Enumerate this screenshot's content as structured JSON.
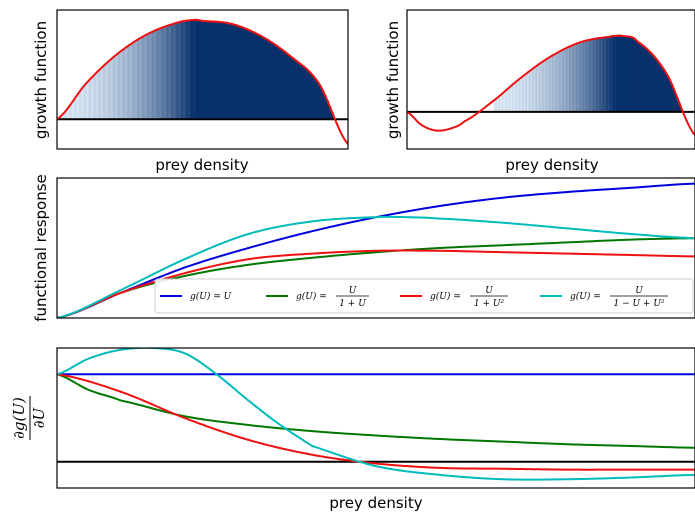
{
  "chart_data": [
    {
      "type": "area",
      "panel": "top-left",
      "xlabel": "prey density",
      "ylabel": "growth function",
      "xlim": [
        0,
        1
      ],
      "ylim": [
        -0.3,
        1.1
      ],
      "grid": false,
      "zero_line": true,
      "gradient_fill": {
        "colormap": "Blues",
        "from": 0.0,
        "to": 0.48,
        "then_solid": true
      },
      "series": [
        {
          "name": "",
          "color": "#ee1111",
          "x": [
            0,
            0.1,
            0.2,
            0.3,
            0.4,
            0.47,
            0.5,
            0.6,
            0.7,
            0.8,
            0.9,
            1.0
          ],
          "y": [
            0,
            0.36,
            0.64,
            0.84,
            0.96,
            1.0,
            0.99,
            0.96,
            0.84,
            0.64,
            0.36,
            -0.25
          ]
        }
      ]
    },
    {
      "type": "area",
      "panel": "top-right",
      "xlabel": "prey density",
      "ylabel": "growth function",
      "xlim": [
        0,
        1
      ],
      "ylim": [
        -0.4,
        1.1
      ],
      "grid": false,
      "zero_line": true,
      "gradient_fill": {
        "colormap": "Blues",
        "from": 0.3,
        "to": 0.73,
        "then_solid": true
      },
      "series": [
        {
          "name": "",
          "color": "#ee1111",
          "x": [
            0,
            0.05,
            0.1,
            0.15,
            0.2,
            0.3,
            0.4,
            0.5,
            0.6,
            0.7,
            0.75,
            0.8,
            0.9,
            1.0
          ],
          "y": [
            0,
            -0.14,
            -0.2,
            -0.18,
            -0.1,
            0.12,
            0.38,
            0.6,
            0.75,
            0.81,
            0.82,
            0.76,
            0.42,
            -0.25
          ]
        }
      ]
    },
    {
      "type": "line",
      "panel": "middle",
      "xlabel": "",
      "ylabel": "functional response",
      "xlim": [
        0,
        1
      ],
      "ylim": [
        0,
        1
      ],
      "grid": false,
      "legend_position": "lower-right",
      "series": [
        {
          "name": "g(U) = U",
          "color": "#0000dd",
          "x": [
            0,
            0.1,
            0.2,
            0.3,
            0.4,
            0.5,
            0.6,
            0.7,
            0.8,
            0.9,
            1.0
          ],
          "y": [
            0,
            0.18,
            0.36,
            0.5,
            0.62,
            0.72,
            0.8,
            0.86,
            0.9,
            0.93,
            0.96
          ]
        },
        {
          "name": "g(U) = U/(1+U)",
          "color": "#007700",
          "x": [
            0,
            0.1,
            0.2,
            0.3,
            0.4,
            0.5,
            0.6,
            0.7,
            0.8,
            0.9,
            1.0
          ],
          "y": [
            0,
            0.18,
            0.3,
            0.38,
            0.43,
            0.47,
            0.5,
            0.52,
            0.54,
            0.56,
            0.57
          ]
        },
        {
          "name": "g(U) = U/(1+U^2)",
          "color": "#ee1111",
          "x": [
            0,
            0.1,
            0.2,
            0.3,
            0.4,
            0.5,
            0.6,
            0.7,
            0.8,
            0.9,
            1.0
          ],
          "y": [
            0,
            0.18,
            0.32,
            0.42,
            0.46,
            0.48,
            0.48,
            0.47,
            0.46,
            0.45,
            0.44
          ]
        },
        {
          "name": "g(U) = U/(1-U+U^2)",
          "color": "#00bbbb",
          "x": [
            0,
            0.1,
            0.2,
            0.3,
            0.4,
            0.5,
            0.55,
            0.6,
            0.7,
            0.8,
            0.9,
            1.0
          ],
          "y": [
            0,
            0.2,
            0.42,
            0.6,
            0.69,
            0.72,
            0.72,
            0.71,
            0.68,
            0.64,
            0.6,
            0.57
          ]
        }
      ]
    },
    {
      "type": "line",
      "panel": "bottom",
      "xlabel": "prey density",
      "ylabel": "∂g(U)/∂U",
      "xlim": [
        0,
        1
      ],
      "ylim": [
        -0.3,
        1.3
      ],
      "grid": false,
      "zero_line": true,
      "series": [
        {
          "name": "g(U) = U",
          "color": "#0000dd",
          "x": [
            0,
            1.0
          ],
          "y": [
            1.0,
            1.0
          ]
        },
        {
          "name": "g(U) = U/(1+U)",
          "color": "#007700",
          "x": [
            0,
            0.05,
            0.1,
            0.2,
            0.3,
            0.4,
            0.5,
            0.6,
            0.7,
            0.8,
            0.9,
            1.0
          ],
          "y": [
            1.0,
            0.82,
            0.7,
            0.52,
            0.42,
            0.35,
            0.3,
            0.26,
            0.23,
            0.2,
            0.18,
            0.16
          ]
        },
        {
          "name": "g(U) = U/(1+U^2)",
          "color": "#ee1111",
          "x": [
            0,
            0.1,
            0.2,
            0.3,
            0.4,
            0.5,
            0.6,
            0.7,
            0.8,
            0.9,
            1.0
          ],
          "y": [
            1.0,
            0.8,
            0.5,
            0.25,
            0.08,
            -0.02,
            -0.07,
            -0.08,
            -0.09,
            -0.09,
            -0.09
          ]
        },
        {
          "name": "g(U) = U/(1-U+U^2)",
          "color": "#00bbbb",
          "x": [
            0,
            0.05,
            0.1,
            0.15,
            0.2,
            0.25,
            0.3,
            0.35,
            0.4,
            0.5,
            0.6,
            0.7,
            0.8,
            0.9,
            1.0
          ],
          "y": [
            1.0,
            1.18,
            1.28,
            1.3,
            1.24,
            1.0,
            0.7,
            0.42,
            0.18,
            -0.05,
            -0.15,
            -0.2,
            -0.2,
            -0.18,
            -0.15
          ]
        }
      ]
    }
  ],
  "legend_entries": [
    {
      "plain": "g(U) = U",
      "fraction": false,
      "lhs": "g(U) =",
      "rhs": "U",
      "color": "#0000dd"
    },
    {
      "plain": "",
      "fraction": true,
      "lhs": "g(U) =",
      "num": "U",
      "den": "1 + U",
      "color": "#007700"
    },
    {
      "plain": "",
      "fraction": true,
      "lhs": "g(U) =",
      "num": "U",
      "den": "1 + U²",
      "color": "#ee1111"
    },
    {
      "plain": "",
      "fraction": true,
      "lhs": "g(U) =",
      "num": "U",
      "den": "1 − U + U²",
      "color": "#00bbbb"
    }
  ],
  "labels": {
    "tl_xlabel": "prey density",
    "tl_ylabel": "growth function",
    "tr_xlabel": "prey density",
    "tr_ylabel": "growth function",
    "mid_ylabel": "functional response",
    "bot_xlabel": "prey density",
    "bot_ylabel_num": "∂g(U)",
    "bot_ylabel_den": "∂U"
  }
}
